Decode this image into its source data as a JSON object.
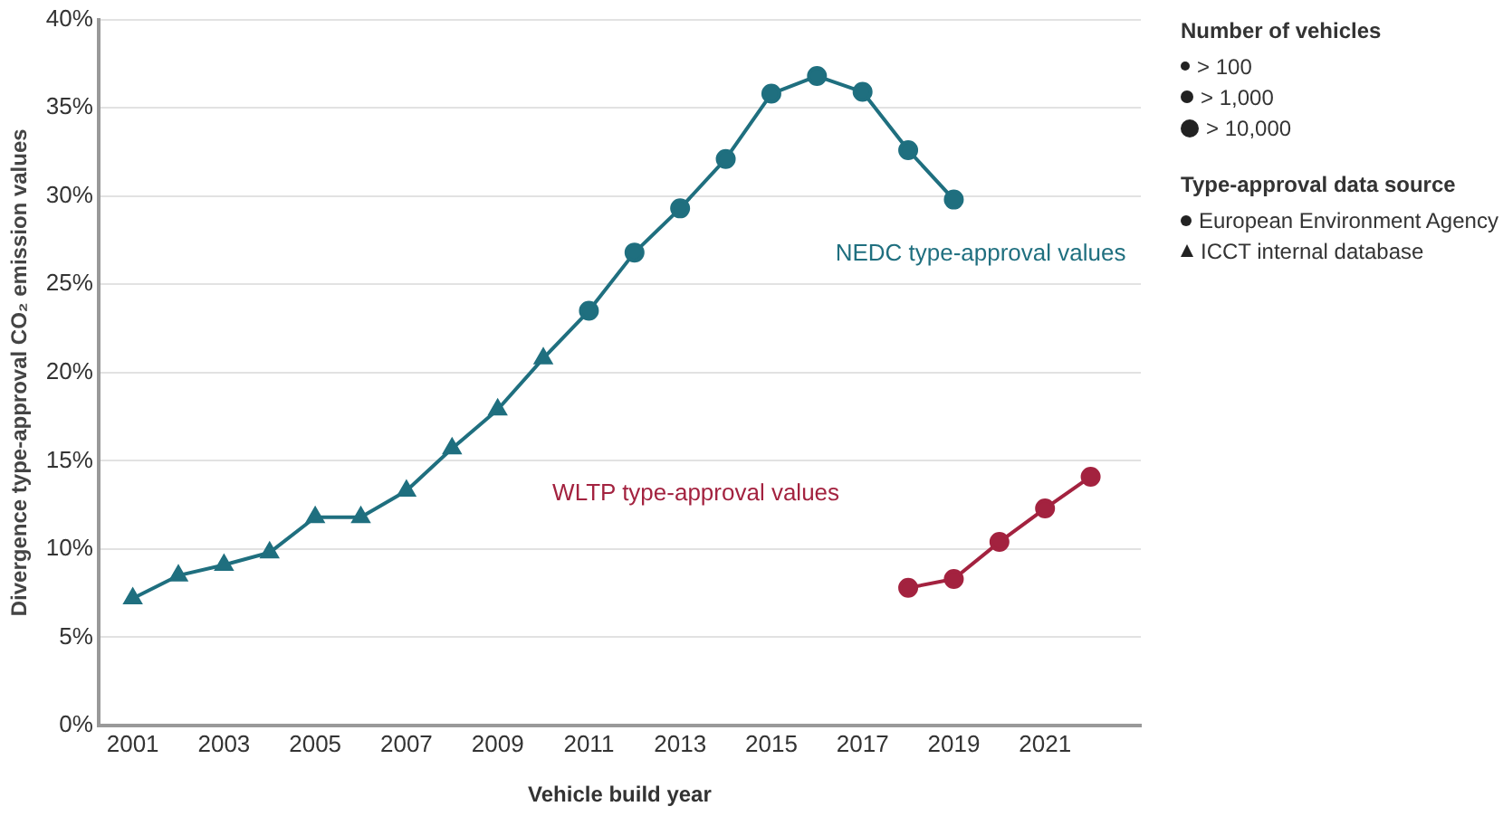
{
  "chart_data": {
    "type": "line",
    "xlabel": "Vehicle build year",
    "ylabel": "Divergence type-approval CO₂ emission values",
    "xlim": [
      2000.25,
      2023.1
    ],
    "xticks": [
      2001,
      2003,
      2005,
      2007,
      2009,
      2011,
      2013,
      2015,
      2017,
      2019,
      2021
    ],
    "ylim": [
      0,
      40
    ],
    "yticks": [
      {
        "value": 0,
        "label": "0%"
      },
      {
        "value": 5,
        "label": "5%"
      },
      {
        "value": 10,
        "label": "10%"
      },
      {
        "value": 15,
        "label": "15%"
      },
      {
        "value": 20,
        "label": "20%"
      },
      {
        "value": 25,
        "label": "25%"
      },
      {
        "value": 30,
        "label": "30%"
      },
      {
        "value": 35,
        "label": "35%"
      },
      {
        "value": 40,
        "label": "40%"
      }
    ],
    "grid": "y",
    "legend": "right",
    "legend_title": "Number of vehicles",
    "annotations": [
      "> 100",
      "> 1,000",
      "> 10,000",
      "Type-approval data source",
      "European Environment Agency",
      "ICCT internal database"
    ],
    "series": [
      {
        "name": "NEDC type-approval values",
        "color": "#1f6f7f",
        "x": [
          2001,
          2002,
          2003,
          2004,
          2005,
          2006,
          2007,
          2008,
          2009,
          2010,
          2011,
          2012,
          2013,
          2014,
          2015,
          2016,
          2017,
          2018,
          2019
        ],
        "values": [
          7.2,
          8.5,
          9.1,
          9.8,
          11.8,
          11.8,
          13.3,
          15.7,
          17.9,
          20.8,
          23.5,
          26.8,
          29.3,
          32.1,
          35.8,
          36.8,
          35.9,
          32.6,
          29.8
        ],
        "marker": [
          "triangle",
          "triangle",
          "triangle",
          "triangle",
          "triangle",
          "triangle",
          "triangle",
          "triangle",
          "triangle",
          "triangle",
          "circle",
          "circle",
          "circle",
          "circle",
          "circle",
          "circle",
          "circle",
          "circle",
          "circle"
        ]
      },
      {
        "name": "WLTP type-approval values",
        "color": "#a3223f",
        "x": [
          2018,
          2019,
          2020,
          2021,
          2022
        ],
        "values": [
          7.8,
          8.3,
          10.4,
          12.3,
          14.1
        ],
        "marker": [
          "circle",
          "circle",
          "circle",
          "circle",
          "circle"
        ]
      }
    ]
  }
}
